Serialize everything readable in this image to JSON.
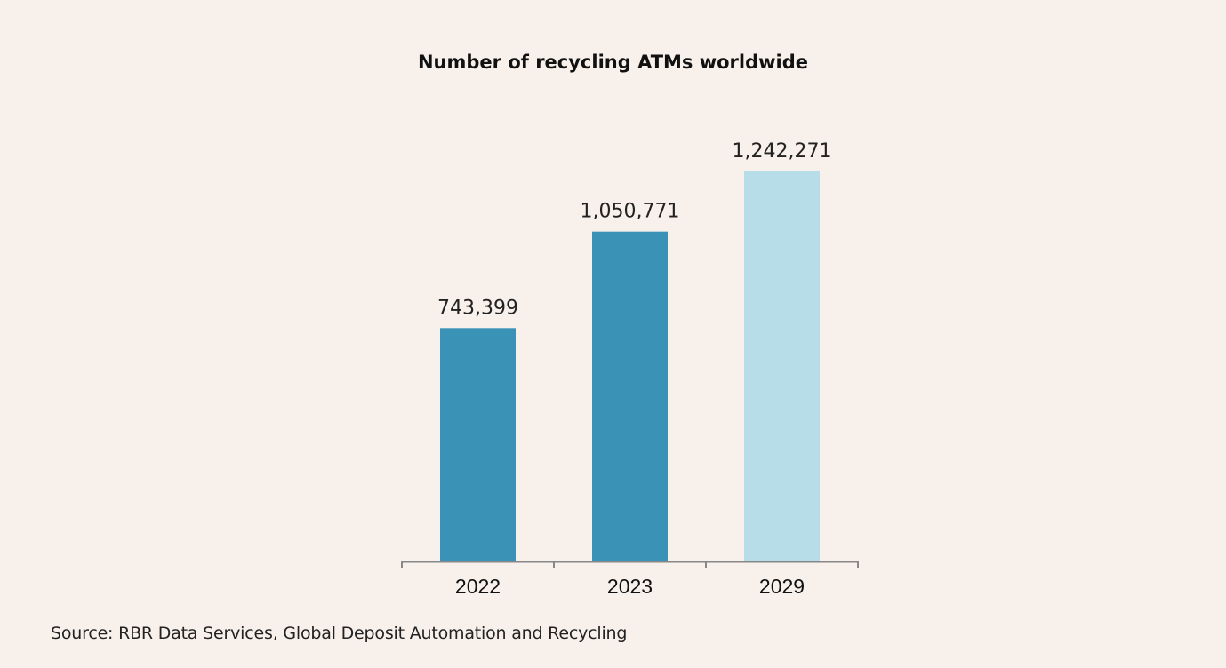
{
  "chart_data": {
    "type": "bar",
    "title": "Number of recycling ATMs worldwide",
    "categories": [
      "2022",
      "2023",
      "2029"
    ],
    "values": [
      743399,
      1050771,
      1242271
    ],
    "data_labels": [
      "743,399",
      "1,050,771",
      "1,242,271"
    ],
    "bar_colors": [
      "#3a92b6",
      "#3a92b6",
      "#b6dde8"
    ],
    "xlabel": "",
    "ylabel": "",
    "ylim": [
      0,
      1242271
    ],
    "grid": false,
    "legend": "none",
    "source": "Source: RBR Data Services, Global Deposit Automation and Recycling"
  }
}
